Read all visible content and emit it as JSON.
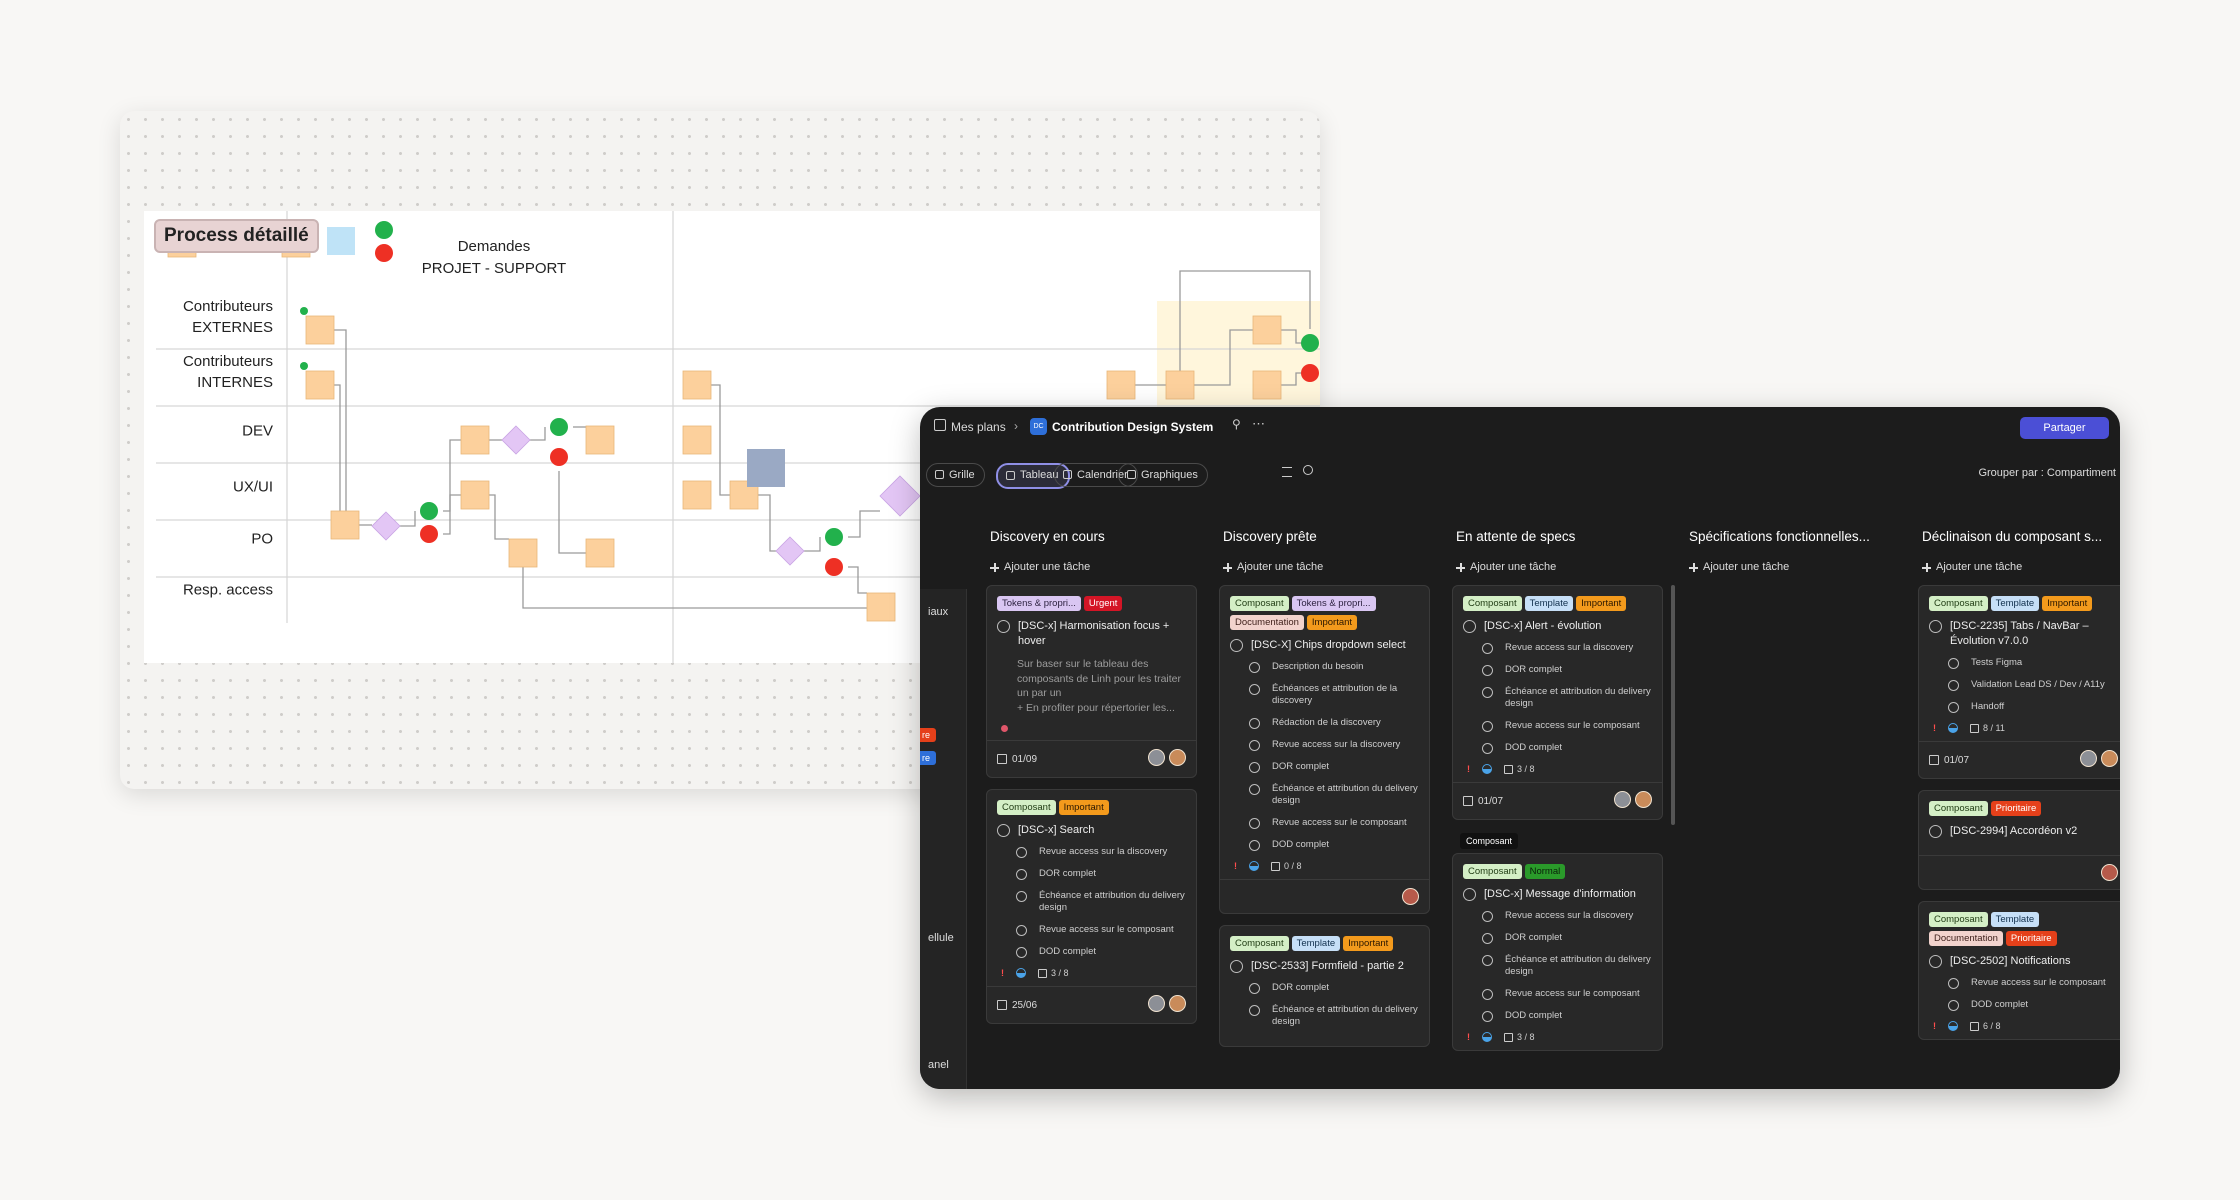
{
  "whiteboard": {
    "title": "Process détaillé",
    "header": [
      "Demandes",
      "PROJET - SUPPORT"
    ],
    "rows": [
      [
        "Contributeurs",
        "EXTERNES"
      ],
      [
        "Contributeurs",
        "INTERNES"
      ],
      [
        "DEV"
      ],
      [
        "UX/UI"
      ],
      [
        "PO"
      ],
      [
        "Resp. access"
      ]
    ]
  },
  "board": {
    "breadcrumb": "Mes plans",
    "plan_badge": "DC",
    "plan_name": "Contribution Design System",
    "share": "Partager",
    "tabs": [
      "Grille",
      "Tableau",
      "Calendrier",
      "Graphiques"
    ],
    "active_tab": 1,
    "group_by": "Grouper par : Compartiment",
    "left_fragments": [
      "iaux",
      "re",
      "re",
      "ellule",
      "anel"
    ],
    "tooltip": "Composant",
    "columns": [
      {
        "title": "Discovery en cours",
        "add": "Ajouter une tâche",
        "cards": [
          {
            "tags": [
              {
                "label": "Tokens & propri...",
                "bg": "#d9c6f2",
                "fg": "#2a1f3d"
              },
              {
                "label": "Urgent",
                "bg": "#d41526",
                "fg": "#ffffff"
              }
            ],
            "title": "[DSC-x] Harmonisation focus + hover",
            "description": "Sur baser sur le tableau des composants de Linh pour les traiter un par un\n+ En profiter pour répertorier les...",
            "date": "01/09"
          },
          {
            "tags": [
              {
                "label": "Composant",
                "bg": "#d4efc6",
                "fg": "#1e3a12"
              },
              {
                "label": "Important",
                "bg": "#f39a1c",
                "fg": "#2a1700"
              }
            ],
            "title": "[DSC-x] Search",
            "items": [
              "Revue access sur la discovery",
              "DOR complet",
              "Échéance et attribution du delivery design",
              "Revue access sur le composant",
              "DOD complet"
            ],
            "progress": "3 / 8",
            "date": "25/06"
          }
        ]
      },
      {
        "title": "Discovery prête",
        "add": "Ajouter une tâche",
        "cards": [
          {
            "tags": [
              {
                "label": "Composant",
                "bg": "#d4efc6",
                "fg": "#1e3a12"
              },
              {
                "label": "Tokens & propri...",
                "bg": "#d9c6f2",
                "fg": "#2a1f3d"
              },
              {
                "label": "Documentation",
                "bg": "#f2d3cd",
                "fg": "#3d1f1a"
              },
              {
                "label": "Important",
                "bg": "#f39a1c",
                "fg": "#2a1700"
              }
            ],
            "title": "[DSC-X] Chips dropdown select",
            "items": [
              "Description du besoin",
              "Échéances et attribution de la discovery",
              "Rédaction de la discovery",
              "Revue access sur la discovery",
              "DOR complet",
              "Échéance et attribution du delivery design",
              "Revue access sur le composant",
              "DOD complet"
            ],
            "progress": "0 / 8"
          },
          {
            "tags": [
              {
                "label": "Composant",
                "bg": "#d4efc6",
                "fg": "#1e3a12"
              },
              {
                "label": "Template",
                "bg": "#c6dff7",
                "fg": "#12304d"
              },
              {
                "label": "Important",
                "bg": "#f39a1c",
                "fg": "#2a1700"
              }
            ],
            "title": "[DSC-2533] Formfield - partie 2",
            "items": [
              "DOR complet",
              "Échéance et attribution du delivery design"
            ]
          }
        ]
      },
      {
        "title": "En attente de specs",
        "add": "Ajouter une tâche",
        "cards": [
          {
            "tags": [
              {
                "label": "Composant",
                "bg": "#d4efc6",
                "fg": "#1e3a12"
              },
              {
                "label": "Template",
                "bg": "#c6dff7",
                "fg": "#12304d"
              },
              {
                "label": "Important",
                "bg": "#f39a1c",
                "fg": "#2a1700"
              }
            ],
            "title": "[DSC-x] Alert - évolution",
            "items": [
              "Revue access sur la discovery",
              "DOR complet",
              "Échéance et attribution du delivery design",
              "Revue access sur le composant",
              "DOD complet"
            ],
            "progress": "3 / 8",
            "date": "01/07"
          },
          {
            "tags": [
              {
                "label": "Composant",
                "bg": "#d4efc6",
                "fg": "#1e3a12"
              },
              {
                "label": "Normal",
                "bg": "#2a9a2a",
                "fg": "#0a1f0a"
              }
            ],
            "title": "[DSC-x] Message d'information",
            "items": [
              "Revue access sur la discovery",
              "DOR complet",
              "Échéance et attribution du delivery design",
              "Revue access sur le composant",
              "DOD complet"
            ],
            "progress": "3 / 8"
          }
        ]
      },
      {
        "title": "Spécifications fonctionnelles...",
        "add": "Ajouter une tâche",
        "cards": []
      },
      {
        "title": "Déclinaison du composant s...",
        "add": "Ajouter une tâche",
        "cards": [
          {
            "tags": [
              {
                "label": "Composant",
                "bg": "#d4efc6",
                "fg": "#1e3a12"
              },
              {
                "label": "Template",
                "bg": "#c6dff7",
                "fg": "#12304d"
              },
              {
                "label": "Important",
                "bg": "#f39a1c",
                "fg": "#2a1700"
              }
            ],
            "title": "[DSC-2235] Tabs / NavBar – Évolution v7.0.0",
            "items": [
              "Tests Figma",
              "Validation Lead DS / Dev / A11y",
              "Handoff"
            ],
            "progress": "8 / 11",
            "date": "01/07"
          },
          {
            "tags": [
              {
                "label": "Composant",
                "bg": "#d4efc6",
                "fg": "#1e3a12"
              },
              {
                "label": "Prioritaire",
                "bg": "#e5401a",
                "fg": "#ffffff"
              }
            ],
            "title": "[DSC-2994] Accordéon v2"
          },
          {
            "tags": [
              {
                "label": "Composant",
                "bg": "#d4efc6",
                "fg": "#1e3a12"
              },
              {
                "label": "Template",
                "bg": "#c6dff7",
                "fg": "#12304d"
              },
              {
                "label": "Documentation",
                "bg": "#f2d3cd",
                "fg": "#3d1f1a"
              },
              {
                "label": "Prioritaire",
                "bg": "#e5401a",
                "fg": "#ffffff"
              }
            ],
            "title": "[DSC-2502] Notifications",
            "items": [
              "Revue access sur le composant",
              "DOD complet"
            ],
            "progress": "6 / 8"
          }
        ]
      }
    ]
  }
}
